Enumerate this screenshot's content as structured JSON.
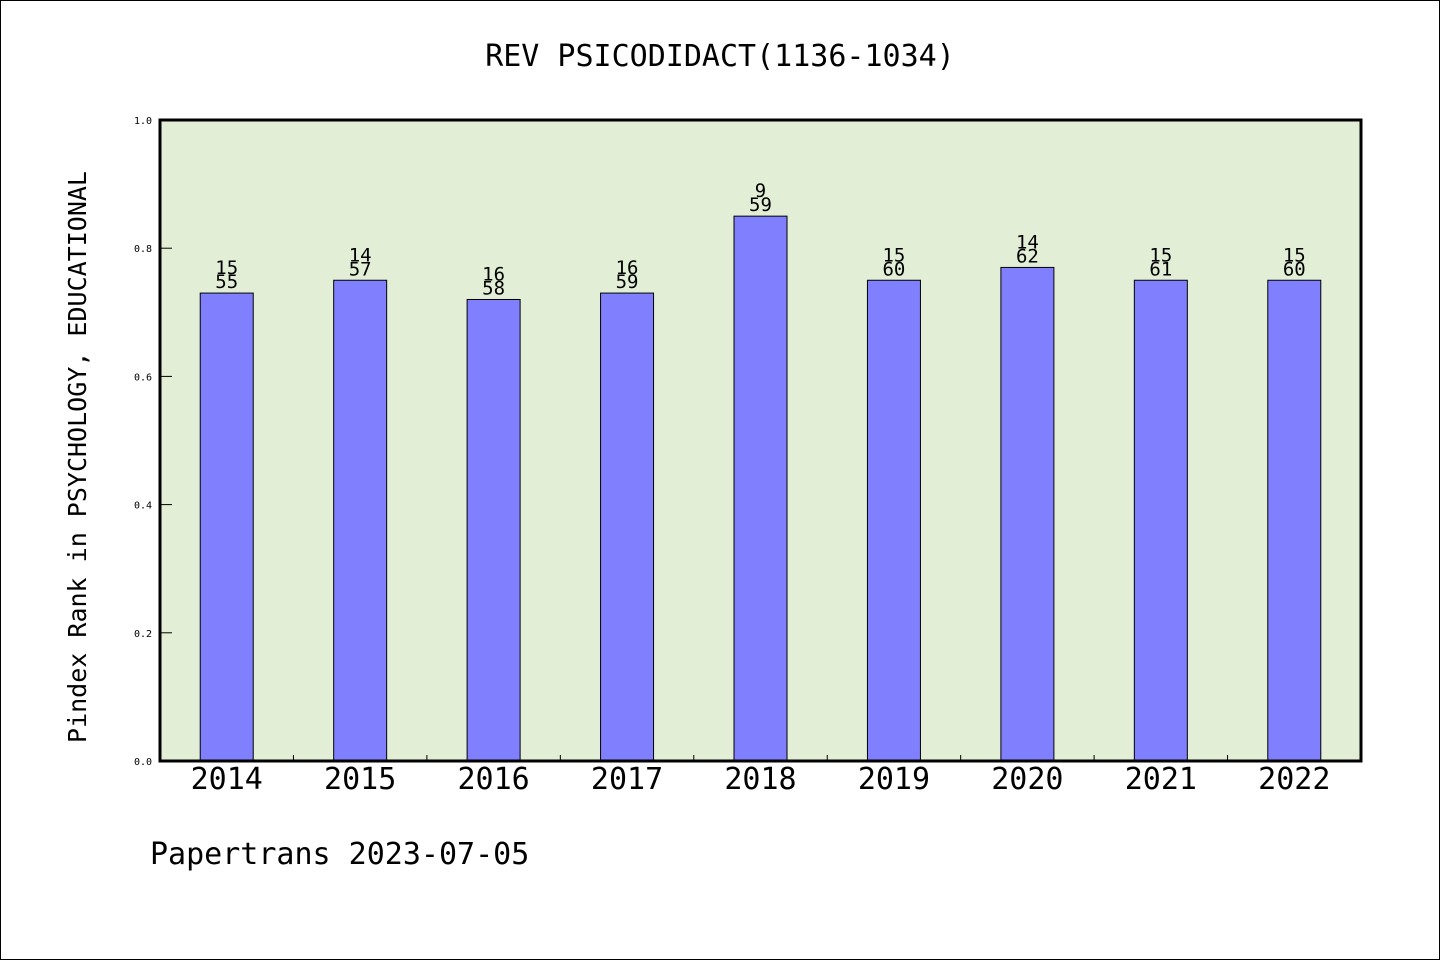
{
  "chart_data": {
    "type": "bar",
    "title": "REV PSICODIDACT(1136-1034)",
    "ylabel": "Pindex Rank in PSYCHOLOGY, EDUCATIONAL",
    "xlabel": "",
    "categories": [
      "2014",
      "2015",
      "2016",
      "2017",
      "2018",
      "2019",
      "2020",
      "2021",
      "2022"
    ],
    "values": [
      0.73,
      0.75,
      0.72,
      0.73,
      0.85,
      0.75,
      0.77,
      0.75,
      0.75
    ],
    "label_top": [
      "15",
      "14",
      "16",
      "16",
      "9",
      "15",
      "14",
      "15",
      "15"
    ],
    "label_bottom": [
      "55",
      "57",
      "58",
      "59",
      "59",
      "60",
      "62",
      "61",
      "60"
    ],
    "ylim": [
      0,
      1.0
    ],
    "yticks": [
      "0.0",
      "0.2",
      "0.4",
      "0.6",
      "0.8",
      "1.0"
    ],
    "grid": false,
    "colors": {
      "bar": "#8080ff",
      "plot_bg": "#e2efd6",
      "frame": "#000000"
    }
  },
  "footer": "Papertrans 2023-07-05"
}
